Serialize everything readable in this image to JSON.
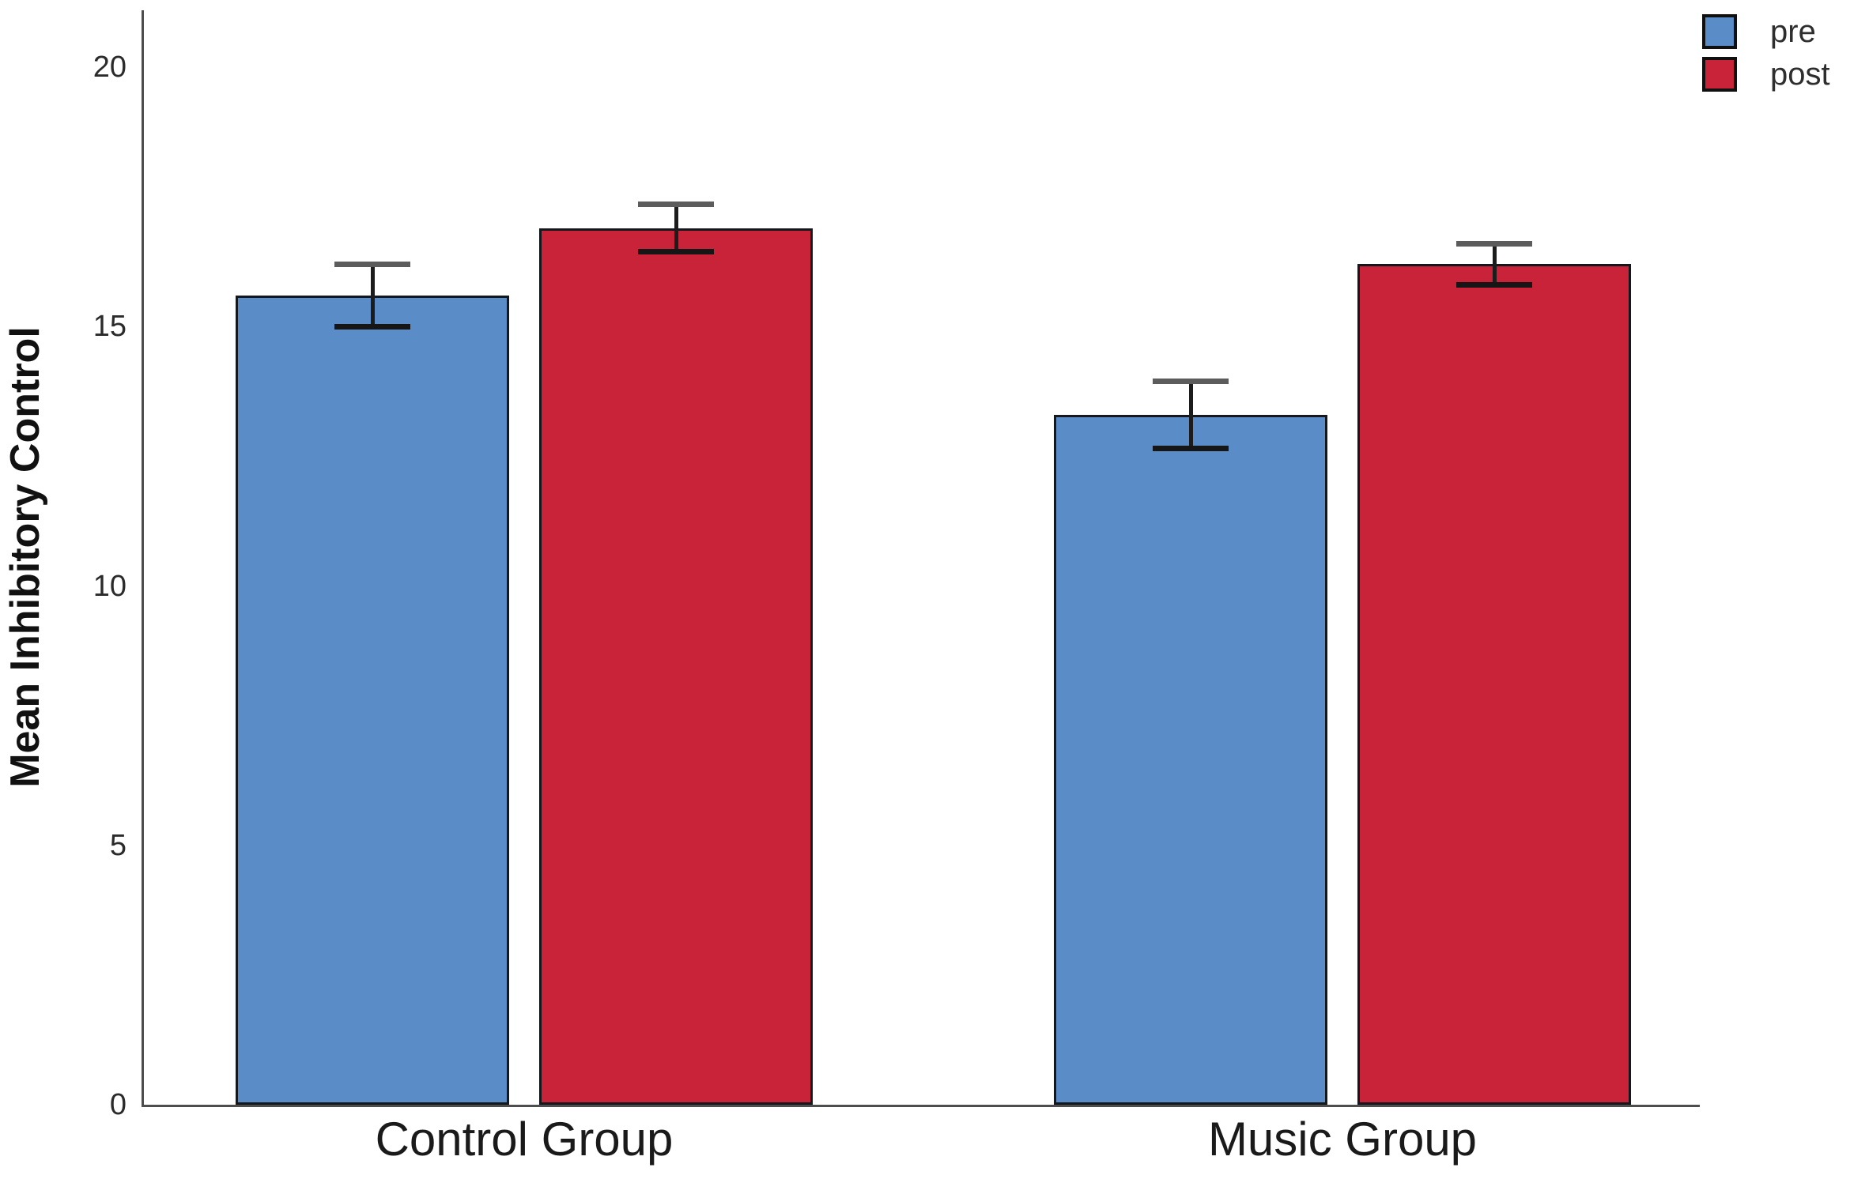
{
  "chart_data": {
    "type": "bar",
    "title": "",
    "xlabel": "",
    "ylabel": "Mean Inhibitory Control",
    "categories": [
      "Control Group",
      "Music Group"
    ],
    "series": [
      {
        "name": "pre",
        "color": "#5A8DC8",
        "values": [
          15.6,
          13.3
        ],
        "errors": [
          0.6,
          0.65
        ]
      },
      {
        "name": "post",
        "color": "#C82338",
        "values": [
          16.9,
          16.2
        ],
        "errors": [
          0.45,
          0.4
        ]
      }
    ],
    "ylim": [
      0,
      21.1
    ],
    "yticks": [
      "0",
      "5",
      "10",
      "15",
      "20"
    ],
    "grid": false,
    "legend_position": "top-right-outside",
    "colors": {
      "axis_line": "#4d4d4d",
      "bar_border": "#14171c",
      "error_line": "#1c1c1c",
      "error_cap_top": "#5c5c5c",
      "error_cap_bottom": "#161616",
      "tick_text": "#2b2b2b",
      "label_text": "#1a1a1a"
    }
  }
}
